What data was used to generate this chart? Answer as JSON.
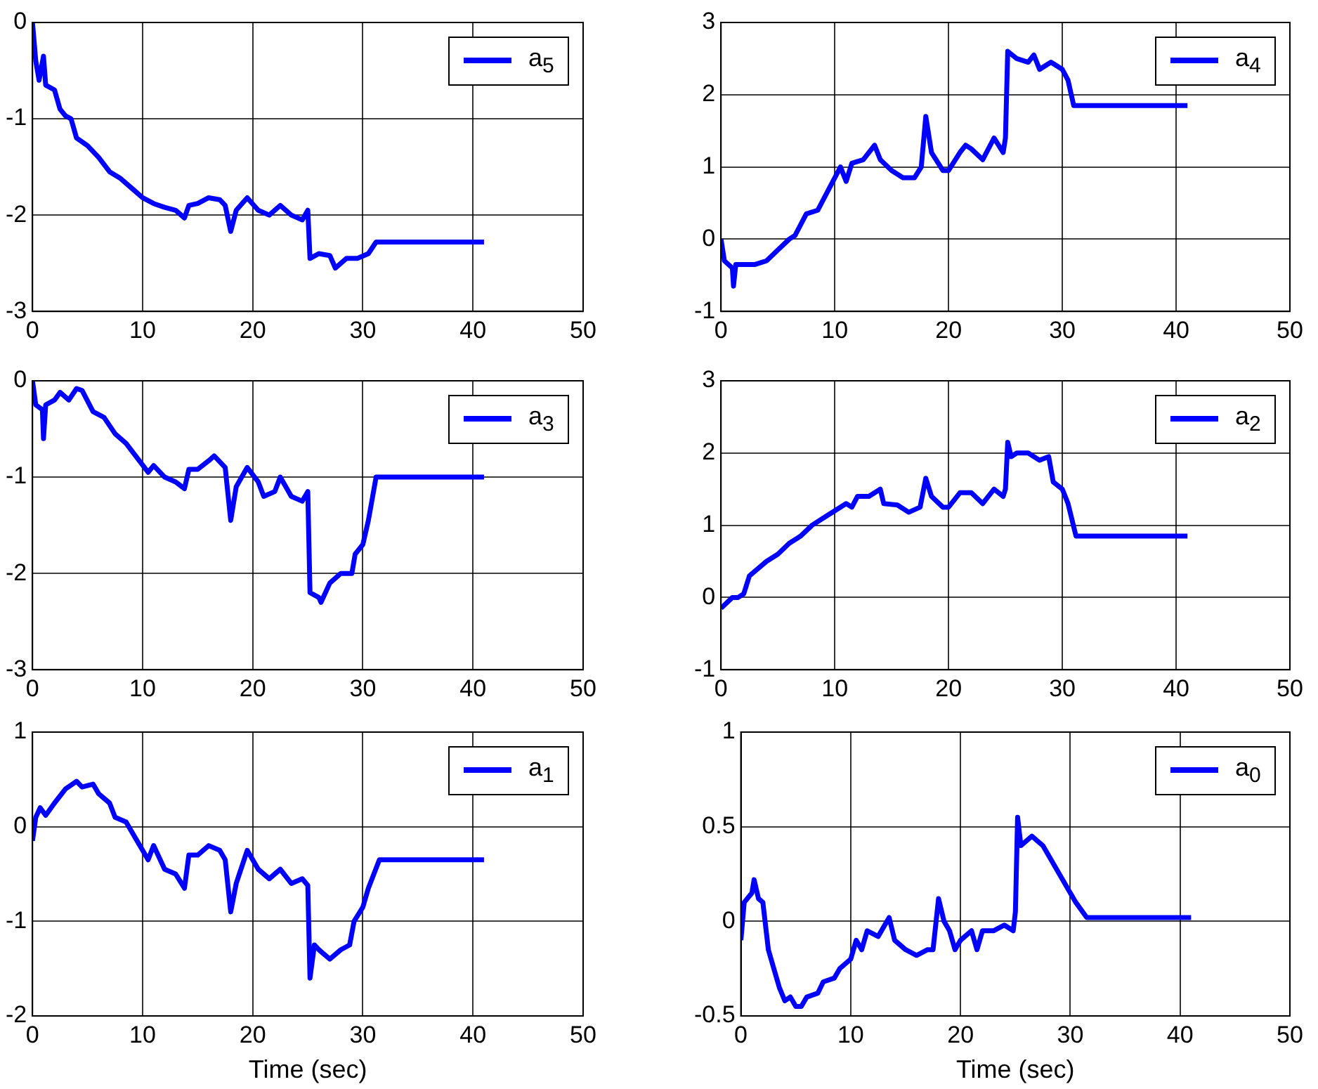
{
  "chart_data": [
    {
      "type": "line",
      "x": [
        0,
        0.3,
        0.6,
        1,
        1.2,
        2,
        2.5,
        3,
        3.5,
        4,
        5,
        6,
        7,
        8,
        9,
        10,
        11,
        12,
        13,
        13.8,
        14.2,
        15,
        16,
        17,
        17.5,
        18,
        18.5,
        19.5,
        20.5,
        21.5,
        22.5,
        23.5,
        24.5,
        25,
        25.2,
        26,
        27,
        27.5,
        28.5,
        29.5,
        30.5,
        31.2,
        41
      ],
      "series": [
        {
          "name": "a$_{5}$",
          "color": "#0000ff",
          "values": [
            0,
            -0.4,
            -0.6,
            -0.35,
            -0.65,
            -0.7,
            -0.9,
            -0.97,
            -1.0,
            -1.2,
            -1.28,
            -1.4,
            -1.55,
            -1.62,
            -1.72,
            -1.82,
            -1.88,
            -1.92,
            -1.95,
            -2.03,
            -1.9,
            -1.88,
            -1.82,
            -1.84,
            -1.9,
            -2.17,
            -1.95,
            -1.82,
            -1.95,
            -2.0,
            -1.9,
            -2.0,
            -2.05,
            -1.95,
            -2.45,
            -2.4,
            -2.42,
            -2.55,
            -2.45,
            -2.45,
            -2.4,
            -2.28,
            -2.28
          ]
        }
      ],
      "xlim": [
        0,
        50
      ],
      "xticks": [
        0,
        10,
        20,
        30,
        40,
        50
      ],
      "ylim": [
        -3,
        0
      ],
      "yticks": [
        -3,
        -2,
        -1,
        0
      ],
      "grid": true,
      "legend": "top right",
      "marker": "none"
    },
    {
      "type": "line",
      "x": [
        0,
        0.3,
        1,
        1.1,
        1.3,
        3,
        4,
        5,
        6,
        6.5,
        7,
        7.5,
        8.5,
        9,
        10,
        10.5,
        11,
        11.5,
        12.5,
        13.5,
        14,
        15,
        16,
        17,
        17.6,
        18,
        18.5,
        19.5,
        20,
        21,
        21.5,
        22,
        23,
        24,
        24.8,
        25,
        25.2,
        26,
        27,
        27.5,
        28,
        29,
        30,
        30.5,
        31,
        41
      ],
      "series": [
        {
          "name": "a$_{4}$",
          "color": "#0000ff",
          "values": [
            0,
            -0.3,
            -0.4,
            -0.65,
            -0.35,
            -0.35,
            -0.3,
            -0.15,
            0,
            0.05,
            0.2,
            0.35,
            0.4,
            0.55,
            0.85,
            1.0,
            0.8,
            1.05,
            1.1,
            1.3,
            1.1,
            0.95,
            0.85,
            0.85,
            1.0,
            1.7,
            1.2,
            0.95,
            0.95,
            1.2,
            1.3,
            1.25,
            1.1,
            1.4,
            1.2,
            1.4,
            2.6,
            2.5,
            2.45,
            2.55,
            2.35,
            2.45,
            2.35,
            2.2,
            1.85,
            1.85
          ]
        }
      ],
      "xlim": [
        0,
        50
      ],
      "xticks": [
        0,
        10,
        20,
        30,
        40,
        50
      ],
      "ylim": [
        -1,
        3
      ],
      "yticks": [
        -1,
        0,
        1,
        2,
        3
      ],
      "grid": true,
      "legend": "top right",
      "marker": "none"
    },
    {
      "type": "line",
      "x": [
        0,
        0.3,
        0.9,
        1,
        1.2,
        2,
        2.5,
        3.3,
        4,
        4.5,
        5.5,
        6.5,
        7.5,
        8.5,
        9.5,
        10.5,
        11,
        12,
        13,
        13.8,
        14.2,
        15,
        16,
        16.5,
        17.5,
        18,
        18.5,
        19.5,
        20.5,
        21,
        22,
        22.5,
        23.5,
        24.5,
        25,
        25.2,
        26,
        26.2,
        27,
        28,
        29,
        29.3,
        30,
        30.5,
        31.2,
        41
      ],
      "series": [
        {
          "name": "a$_{3}$",
          "color": "#0000ff",
          "values": [
            0,
            -0.25,
            -0.3,
            -0.6,
            -0.25,
            -0.2,
            -0.12,
            -0.2,
            -0.08,
            -0.1,
            -0.32,
            -0.38,
            -0.55,
            -0.65,
            -0.8,
            -0.95,
            -0.88,
            -1.0,
            -1.05,
            -1.12,
            -0.92,
            -0.92,
            -0.83,
            -0.78,
            -0.9,
            -1.45,
            -1.1,
            -0.9,
            -1.05,
            -1.2,
            -1.15,
            -1.0,
            -1.2,
            -1.25,
            -1.15,
            -2.2,
            -2.25,
            -2.3,
            -2.1,
            -2.0,
            -2.0,
            -1.8,
            -1.7,
            -1.45,
            -1.0,
            -1.0
          ]
        }
      ],
      "xlim": [
        0,
        50
      ],
      "xticks": [
        0,
        10,
        20,
        30,
        40,
        50
      ],
      "ylim": [
        -3,
        0
      ],
      "yticks": [
        -3,
        -2,
        -1,
        0
      ],
      "grid": true,
      "legend": "top right",
      "marker": "none"
    },
    {
      "type": "line",
      "x": [
        0,
        1,
        1.5,
        2,
        2.5,
        4,
        5,
        6,
        7,
        8,
        9,
        10,
        11,
        11.5,
        12,
        13,
        14,
        14.3,
        15.5,
        16.5,
        17.5,
        18,
        18.5,
        19.5,
        20,
        21,
        22,
        23,
        24,
        24.8,
        25,
        25.2,
        25.5,
        26,
        27,
        28,
        28.8,
        29.2,
        30,
        30.5,
        31.2,
        41
      ],
      "series": [
        {
          "name": "a$_{2}$",
          "color": "#0000ff",
          "values": [
            -0.15,
            0.0,
            0.0,
            0.05,
            0.3,
            0.5,
            0.6,
            0.75,
            0.85,
            1.0,
            1.1,
            1.2,
            1.3,
            1.25,
            1.4,
            1.4,
            1.5,
            1.3,
            1.28,
            1.18,
            1.25,
            1.65,
            1.4,
            1.25,
            1.25,
            1.45,
            1.45,
            1.3,
            1.5,
            1.4,
            1.5,
            2.15,
            1.95,
            2.0,
            2.0,
            1.9,
            1.95,
            1.6,
            1.5,
            1.3,
            0.85,
            0.85
          ]
        }
      ],
      "xlim": [
        0,
        50
      ],
      "xticks": [
        0,
        10,
        20,
        30,
        40,
        50
      ],
      "ylim": [
        -1,
        3
      ],
      "yticks": [
        -1,
        0,
        1,
        2,
        3
      ],
      "grid": true,
      "legend": "top right",
      "marker": "none"
    },
    {
      "type": "line",
      "xlabel": "Time (sec)",
      "x": [
        0,
        0.3,
        0.7,
        1.2,
        2,
        3,
        4,
        4.5,
        5.5,
        6,
        7,
        7.5,
        8.5,
        9,
        10,
        10.5,
        11,
        12,
        13,
        13.8,
        14.2,
        15,
        16,
        17,
        17.5,
        18,
        18.5,
        19.5,
        20.5,
        21.5,
        22.5,
        23.5,
        24.5,
        25,
        25.2,
        25.6,
        26,
        27,
        28,
        28.8,
        29.2,
        30,
        30.5,
        31.5,
        41
      ],
      "series": [
        {
          "name": "a$_{1}$",
          "color": "#0000ff",
          "values": [
            -0.15,
            0.1,
            0.2,
            0.12,
            0.25,
            0.4,
            0.48,
            0.42,
            0.45,
            0.35,
            0.25,
            0.1,
            0.05,
            -0.05,
            -0.25,
            -0.35,
            -0.2,
            -0.45,
            -0.5,
            -0.65,
            -0.3,
            -0.3,
            -0.2,
            -0.25,
            -0.35,
            -0.9,
            -0.6,
            -0.25,
            -0.45,
            -0.55,
            -0.45,
            -0.6,
            -0.55,
            -0.62,
            -1.6,
            -1.25,
            -1.3,
            -1.4,
            -1.3,
            -1.25,
            -1.0,
            -0.85,
            -0.65,
            -0.35,
            -0.35
          ]
        }
      ],
      "xlim": [
        0,
        50
      ],
      "xticks": [
        0,
        10,
        20,
        30,
        40,
        50
      ],
      "ylim": [
        -2,
        1
      ],
      "yticks": [
        -2,
        -1,
        0,
        1
      ],
      "grid": true,
      "legend": "top right",
      "marker": "none"
    },
    {
      "type": "line",
      "xlabel": "Time (sec)",
      "x": [
        0,
        0.3,
        1,
        1.2,
        1.6,
        2,
        2.5,
        3,
        3.5,
        4,
        4.5,
        5,
        5.5,
        6,
        7,
        7.5,
        8.5,
        9,
        10,
        10.5,
        11,
        11.5,
        12.5,
        13.5,
        14,
        15,
        16,
        17,
        17.5,
        18,
        18.5,
        19,
        19.5,
        20,
        21,
        21.5,
        22,
        23,
        24,
        24.8,
        25,
        25.2,
        25.5,
        26.5,
        27.5,
        28.5,
        29.5,
        30.5,
        31.5,
        41
      ],
      "series": [
        {
          "name": "a$_{0}$",
          "color": "#0000ff",
          "values": [
            -0.1,
            0.1,
            0.15,
            0.22,
            0.12,
            0.1,
            -0.15,
            -0.25,
            -0.35,
            -0.42,
            -0.4,
            -0.45,
            -0.45,
            -0.4,
            -0.38,
            -0.32,
            -0.3,
            -0.25,
            -0.2,
            -0.1,
            -0.15,
            -0.05,
            -0.08,
            0.02,
            -0.1,
            -0.15,
            -0.18,
            -0.15,
            -0.15,
            0.12,
            0.0,
            -0.05,
            -0.15,
            -0.1,
            -0.05,
            -0.15,
            -0.05,
            -0.05,
            -0.02,
            -0.05,
            0.05,
            0.55,
            0.4,
            0.45,
            0.4,
            0.3,
            0.2,
            0.1,
            0.02,
            0.02
          ]
        }
      ],
      "xlim": [
        0,
        50
      ],
      "xticks": [
        0,
        10,
        20,
        30,
        40,
        50
      ],
      "ylim": [
        -0.5,
        1
      ],
      "yticks": [
        -0.5,
        0,
        0.5,
        1
      ],
      "grid": true,
      "legend": "top right",
      "marker": "none"
    }
  ]
}
